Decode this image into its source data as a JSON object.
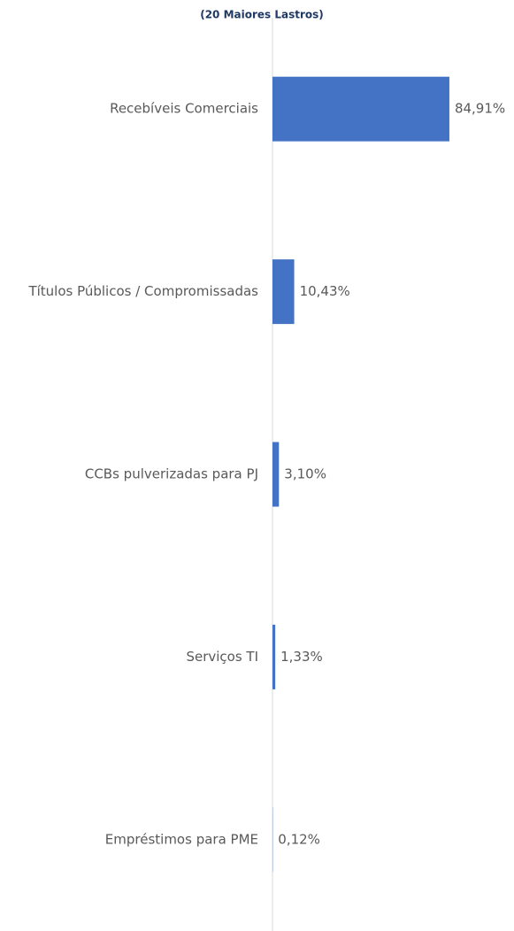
{
  "chart_data": {
    "type": "bar",
    "orientation": "horizontal",
    "title": "(20 Maiores Lastros)",
    "categories": [
      "Recebíveis Comerciais",
      "Títulos Públicos / Compromissadas",
      "CCBs pulverizadas para PJ",
      "Serviços TI",
      "Empréstimos para PME"
    ],
    "values": [
      84.91,
      10.43,
      3.1,
      1.33,
      0.12
    ],
    "value_labels": [
      "84,91%",
      "10,43%",
      "3,10%",
      "1,33%",
      "0,12%"
    ],
    "color": "#4472c4",
    "xlim": [
      0,
      100
    ]
  }
}
